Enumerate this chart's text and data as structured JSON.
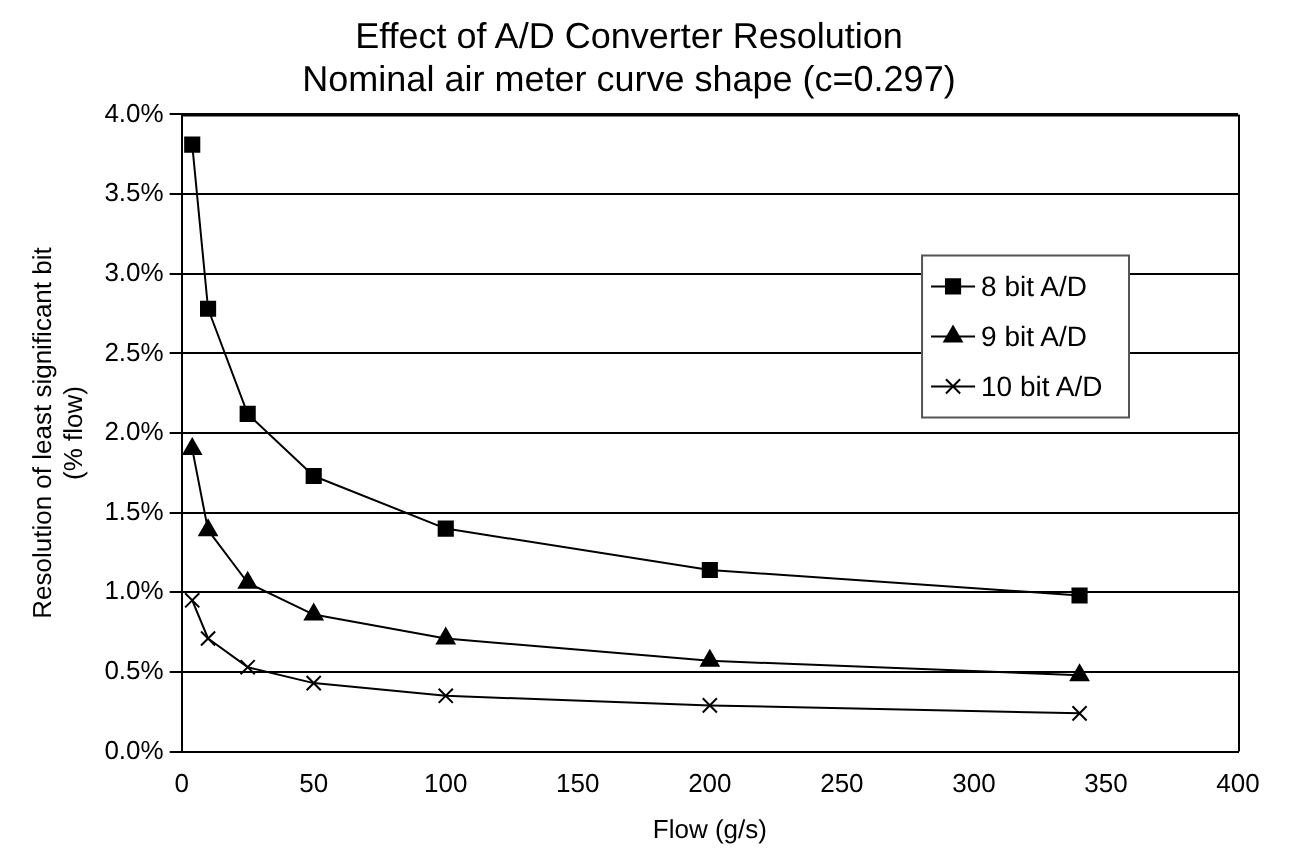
{
  "chart_data": {
    "type": "line",
    "title": "Effect of A/D Converter Resolution",
    "subtitle": "Nominal air meter curve shape (c=0.297)",
    "xlabel": "Flow (g/s)",
    "ylabel": "Resolution of least significant bit (% flow)",
    "x": [
      4,
      10,
      25,
      50,
      100,
      200,
      340
    ],
    "series": [
      {
        "name": "8 bit A/D",
        "color": "#000000",
        "marker": "square",
        "values": [
          3.81,
          2.78,
          2.12,
          1.73,
          1.4,
          1.14,
          0.98
        ]
      },
      {
        "name": "9 bit A/D",
        "color": "#000000",
        "marker": "triangle",
        "values": [
          1.9,
          1.39,
          1.06,
          0.86,
          0.71,
          0.57,
          0.48
        ]
      },
      {
        "name": "10 bit A/D",
        "color": "#000000",
        "marker": "cross",
        "values": [
          0.95,
          0.71,
          0.53,
          0.43,
          0.35,
          0.29,
          0.24
        ]
      }
    ],
    "xlim": [
      0,
      400
    ],
    "xticks": [
      0,
      50,
      100,
      150,
      200,
      250,
      300,
      350,
      400
    ],
    "ylim": [
      0,
      4
    ],
    "yticks": [
      {
        "value": 0,
        "label": "0.0%"
      },
      {
        "value": 0.5,
        "label": "0.5%"
      },
      {
        "value": 1,
        "label": "1.0%"
      },
      {
        "value": 1.5,
        "label": "1.5%"
      },
      {
        "value": 2,
        "label": "2.0%"
      },
      {
        "value": 2.5,
        "label": "2.5%"
      },
      {
        "value": 3,
        "label": "3.0%"
      },
      {
        "value": 3.5,
        "label": "3.5%"
      },
      {
        "value": 4,
        "label": "4.0%"
      }
    ],
    "grid": "y",
    "legend": "right"
  }
}
